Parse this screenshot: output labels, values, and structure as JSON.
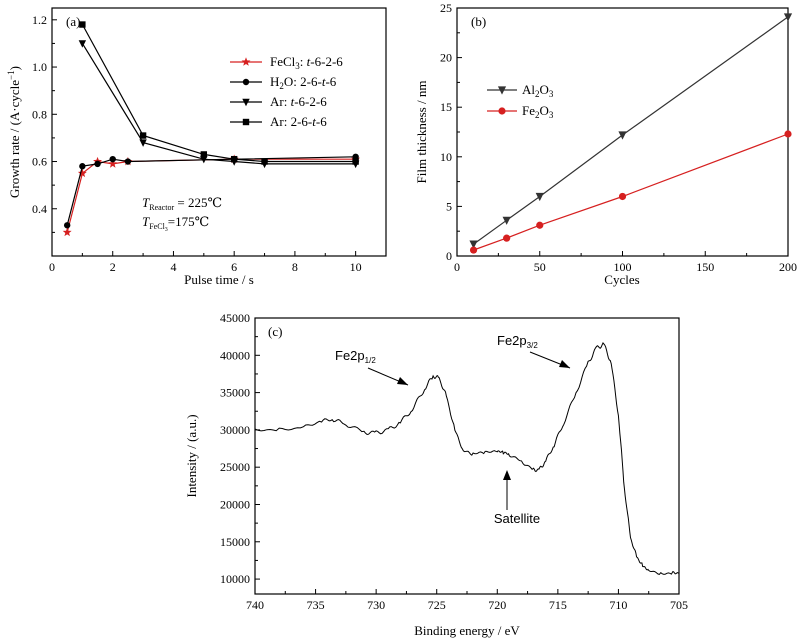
{
  "chart_data": [
    {
      "type": "line",
      "panel_label": "(a)",
      "xlabel": "Pulse time / s",
      "ylabel": {
        "main": "Growth rate / (A·cycle",
        "sup": "−1",
        "close": ")"
      },
      "xlim": [
        0,
        11
      ],
      "ylim": [
        0.2,
        1.25
      ],
      "xticks": [
        "0",
        "2",
        "4",
        "6",
        "8",
        "10"
      ],
      "yticks": [
        "0.4",
        "0.6",
        "0.8",
        "1.0",
        "1.2"
      ],
      "legend_position": "top-right",
      "series": [
        {
          "name": {
            "pre": "FeCl",
            "sub": "3",
            "mid": ": ",
            "it": "t",
            "post": "-6-2-6"
          },
          "marker": "star",
          "color": "#d62020",
          "x": [
            0.5,
            1,
            1.5,
            2,
            2.5,
            6,
            10
          ],
          "y": [
            0.3,
            0.55,
            0.6,
            0.59,
            0.6,
            0.61,
            0.61
          ]
        },
        {
          "name": {
            "pre": "H",
            "sub": "2",
            "mid": "O: 2-6-",
            "it": "t",
            "post": "-6"
          },
          "marker": "circle",
          "color": "#000000",
          "x": [
            0.5,
            1,
            1.5,
            2,
            2.5,
            6,
            10
          ],
          "y": [
            0.33,
            0.58,
            0.59,
            0.61,
            0.6,
            0.61,
            0.62
          ]
        },
        {
          "name": {
            "pre": "Ar: ",
            "sub": "",
            "mid": "",
            "it": "t",
            "post": "-6-2-6"
          },
          "marker": "triangle-down",
          "color": "#000000",
          "x": [
            1,
            3,
            5,
            6,
            7,
            10
          ],
          "y": [
            1.1,
            0.68,
            0.61,
            0.6,
            0.59,
            0.59
          ]
        },
        {
          "name": {
            "pre": "Ar: 2-6-",
            "sub": "",
            "mid": "",
            "it": "t",
            "post": "-6"
          },
          "marker": "square",
          "color": "#000000",
          "x": [
            1,
            3,
            5,
            6,
            7,
            10
          ],
          "y": [
            1.18,
            0.71,
            0.63,
            0.61,
            0.6,
            0.6
          ]
        }
      ],
      "annotations": [
        {
          "it": "T",
          "sub": "Reactor",
          "text": " = 225℃"
        },
        {
          "it": "T",
          "sub": "FeCl",
          "sub2": "3",
          "text": "=175℃"
        }
      ]
    },
    {
      "type": "line",
      "panel_label": "(b)",
      "xlabel": "Cycles",
      "ylabel": "Film thickness / nm",
      "xlim": [
        0,
        200
      ],
      "ylim": [
        0,
        25
      ],
      "xticks": [
        "0",
        "50",
        "100",
        "150",
        "200"
      ],
      "yticks": [
        "0",
        "5",
        "10",
        "15",
        "20",
        "25"
      ],
      "legend_position": "top-left",
      "series": [
        {
          "name": {
            "pre": "Al",
            "sub": "2",
            "mid": "O",
            "sub2": "3"
          },
          "marker": "triangle-down",
          "color": "#333333",
          "x": [
            10,
            30,
            50,
            100,
            200
          ],
          "y": [
            1.2,
            3.6,
            6.0,
            12.2,
            24.1
          ]
        },
        {
          "name": {
            "pre": "Fe",
            "sub": "2",
            "mid": "O",
            "sub2": "3"
          },
          "marker": "circle",
          "color": "#d62020",
          "x": [
            10,
            30,
            50,
            100,
            200
          ],
          "y": [
            0.6,
            1.8,
            3.1,
            6.0,
            12.3
          ]
        }
      ]
    },
    {
      "type": "line",
      "panel_label": "(c)",
      "xlabel": "Binding energy / eV",
      "ylabel": "Intensity / (a.u.)",
      "xlim": [
        740,
        705
      ],
      "ylim": [
        8000,
        45000
      ],
      "xticks": [
        "740",
        "735",
        "730",
        "725",
        "720",
        "715",
        "710",
        "705"
      ],
      "yticks": [
        "10000",
        "15000",
        "20000",
        "25000",
        "30000",
        "35000",
        "40000",
        "45000"
      ],
      "series": [
        {
          "name": "",
          "color": "#000000",
          "x": [
            740,
            738,
            736,
            734.5,
            733.5,
            732.5,
            731,
            730,
            729,
            728,
            727,
            726,
            725.3,
            724.8,
            724.2,
            723.5,
            722.8,
            722,
            721,
            720,
            719.5,
            719,
            718,
            717,
            716.5,
            716,
            715.3,
            714.5,
            713.5,
            712.5,
            711.8,
            711.2,
            710.6,
            710,
            709.5,
            709,
            708.5,
            708,
            707.5,
            706.5,
            705.5,
            705
          ],
          "y": [
            30000,
            30000,
            30300,
            31200,
            31400,
            30800,
            29700,
            29600,
            30000,
            31000,
            32800,
            35500,
            37200,
            36900,
            34500,
            30000,
            27200,
            26800,
            27000,
            27100,
            27000,
            26700,
            25800,
            24600,
            24700,
            25800,
            28000,
            31000,
            35000,
            39000,
            41000,
            41500,
            39000,
            32000,
            22000,
            15500,
            13000,
            11800,
            11200,
            10700,
            10800,
            10800
          ]
        }
      ],
      "annotations": [
        {
          "text": "Fe2p",
          "sub": "1/2"
        },
        {
          "text": "Fe2p",
          "sub": "3/2"
        },
        {
          "text": "Satellite"
        }
      ]
    }
  ]
}
